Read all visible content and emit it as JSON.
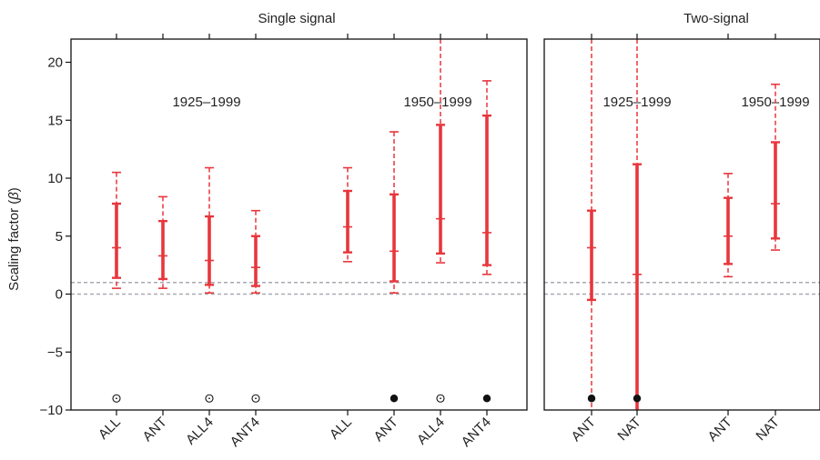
{
  "chart_data": [
    {
      "type": "errorbar",
      "title": "Single signal",
      "ylabel": "Scaling factor (β)",
      "ylim": [
        -10,
        22
      ],
      "yticks": [
        -10,
        -5,
        0,
        5,
        10,
        15,
        20
      ],
      "grid": false,
      "reference_lines": [
        0,
        1
      ],
      "annotations": [
        "1925–1999",
        "1950–1999"
      ],
      "categories": [
        "ALL",
        "ANT",
        "ALL4",
        "ANT4",
        "ALL",
        "ANT",
        "ALL4",
        "ANT4"
      ],
      "groups": [
        {
          "label": "1925–1999",
          "members": [
            0,
            1,
            2,
            3
          ]
        },
        {
          "label": "1950–1999",
          "members": [
            4,
            5,
            6,
            7
          ]
        }
      ],
      "points": [
        {
          "category": "ALL",
          "period": "1925–1999",
          "best": 4.0,
          "thick_low": 1.4,
          "thick_high": 7.8,
          "thin_low": 0.5,
          "thin_high": 10.5,
          "marker": "open"
        },
        {
          "category": "ANT",
          "period": "1925–1999",
          "best": 3.3,
          "thick_low": 1.3,
          "thick_high": 6.3,
          "thin_low": 0.5,
          "thin_high": 8.4,
          "marker": "none"
        },
        {
          "category": "ALL4",
          "period": "1925–1999",
          "best": 2.9,
          "thick_low": 0.8,
          "thick_high": 6.7,
          "thin_low": 0.1,
          "thin_high": 10.9,
          "marker": "open"
        },
        {
          "category": "ANT4",
          "period": "1925–1999",
          "best": 2.3,
          "thick_low": 0.7,
          "thick_high": 5.0,
          "thin_low": 0.1,
          "thin_high": 7.2,
          "marker": "open"
        },
        {
          "category": "ALL",
          "period": "1950–1999",
          "best": 5.8,
          "thick_low": 3.6,
          "thick_high": 8.9,
          "thin_low": 2.8,
          "thin_high": 10.9,
          "marker": "none"
        },
        {
          "category": "ANT",
          "period": "1950–1999",
          "best": 3.7,
          "thick_low": 1.1,
          "thick_high": 8.6,
          "thin_low": 0.1,
          "thin_high": 14.0,
          "marker": "filled"
        },
        {
          "category": "ALL4",
          "period": "1950–1999",
          "best": 6.5,
          "thick_low": 3.5,
          "thick_high": 14.6,
          "thin_low": 2.7,
          "thin_high": 22.0,
          "marker": "open"
        },
        {
          "category": "ANT4",
          "period": "1950–1999",
          "best": 5.3,
          "thick_low": 2.5,
          "thick_high": 15.4,
          "thin_low": 1.7,
          "thin_high": 18.4,
          "marker": "filled"
        }
      ]
    },
    {
      "type": "errorbar",
      "title": "Two-signal",
      "ylim": [
        -10,
        22
      ],
      "reference_lines": [
        0,
        1
      ],
      "annotations": [
        "1925–1999",
        "1950–1999"
      ],
      "categories": [
        "ANT",
        "NAT",
        "ANT",
        "NAT"
      ],
      "groups": [
        {
          "label": "1925–1999",
          "members": [
            0,
            1
          ]
        },
        {
          "label": "1950–1999",
          "members": [
            2,
            3
          ]
        }
      ],
      "points": [
        {
          "category": "ANT",
          "period": "1925–1999",
          "best": 4.0,
          "thick_low": -0.5,
          "thick_high": 7.2,
          "thin_low": -10.0,
          "thin_high": 22.0,
          "marker": "filled"
        },
        {
          "category": "NAT",
          "period": "1925–1999",
          "best": 1.7,
          "thick_low": -10.0,
          "thick_high": 11.2,
          "thin_low": -10.0,
          "thin_high": 22.0,
          "marker": "filled"
        },
        {
          "category": "ANT",
          "period": "1950–1999",
          "best": 5.0,
          "thick_low": 2.6,
          "thick_high": 8.3,
          "thin_low": 1.5,
          "thin_high": 10.4,
          "marker": "none"
        },
        {
          "category": "NAT",
          "period": "1950–1999",
          "best": 7.8,
          "thick_low": 4.8,
          "thick_high": 13.1,
          "thin_low": 3.8,
          "thin_high": 18.1,
          "marker": "none"
        }
      ]
    }
  ],
  "colors": {
    "bar": "#e8363c",
    "reference_line": "#a9a9b3",
    "axis": "#111111",
    "text": "#222222",
    "marker": "#111111"
  }
}
